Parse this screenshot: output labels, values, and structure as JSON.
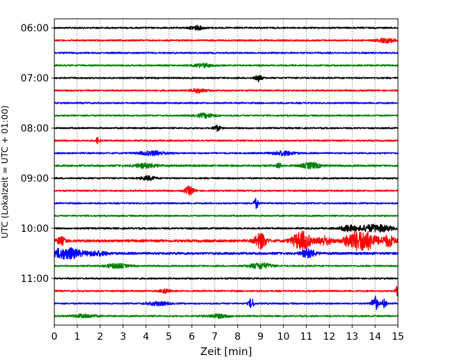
{
  "chart_data": {
    "type": "line",
    "title": "",
    "xlabel": "Zeit  [min]",
    "ylabel": "UTC (Lokalzeit = UTC + 01:00)",
    "xlim": [
      0,
      15
    ],
    "x_ticks": [
      "0",
      "1",
      "2",
      "3",
      "4",
      "5",
      "6",
      "7",
      "8",
      "9",
      "10",
      "11",
      "12",
      "13",
      "14",
      "15"
    ],
    "y_tick_labels": [
      "06:00",
      "07:00",
      "08:00",
      "09:00",
      "10:00",
      "11:00"
    ],
    "grid": "vertical dotted",
    "start_time": "06:00",
    "trace_interval_minutes": 15,
    "colors": [
      "#000000",
      "#ff0000",
      "#0000ff",
      "#008000"
    ],
    "series": [
      {
        "start": "06:00",
        "color": "#000000",
        "amplitude": 1.0,
        "events": [
          {
            "t": 6.2,
            "amp": 3,
            "w": 0.3
          }
        ]
      },
      {
        "start": "06:15",
        "color": "#ff0000",
        "amplitude": 1.0,
        "events": [
          {
            "t": 14.5,
            "amp": 3,
            "w": 0.4
          }
        ]
      },
      {
        "start": "06:30",
        "color": "#0000ff",
        "amplitude": 1.0,
        "events": []
      },
      {
        "start": "06:45",
        "color": "#008000",
        "amplitude": 1.0,
        "events": [
          {
            "t": 6.5,
            "amp": 2.5,
            "w": 0.4
          }
        ]
      },
      {
        "start": "07:00",
        "color": "#000000",
        "amplitude": 1.0,
        "events": [
          {
            "t": 8.9,
            "amp": 5,
            "w": 0.15
          }
        ]
      },
      {
        "start": "07:15",
        "color": "#ff0000",
        "amplitude": 1.0,
        "events": [
          {
            "t": 6.3,
            "amp": 3,
            "w": 0.3
          }
        ]
      },
      {
        "start": "07:30",
        "color": "#0000ff",
        "amplitude": 1.0,
        "events": []
      },
      {
        "start": "07:45",
        "color": "#008000",
        "amplitude": 1.0,
        "events": [
          {
            "t": 6.6,
            "amp": 3,
            "w": 0.4
          }
        ]
      },
      {
        "start": "08:00",
        "color": "#000000",
        "amplitude": 1.0,
        "events": [
          {
            "t": 7.1,
            "amp": 4,
            "w": 0.15
          }
        ]
      },
      {
        "start": "08:15",
        "color": "#ff0000",
        "amplitude": 1.0,
        "events": [
          {
            "t": 1.9,
            "amp": 4,
            "w": 0.1
          }
        ]
      },
      {
        "start": "08:30",
        "color": "#0000ff",
        "amplitude": 1.0,
        "events": [
          {
            "t": 4.3,
            "amp": 3,
            "w": 0.6
          },
          {
            "t": 10.0,
            "amp": 3,
            "w": 0.5
          }
        ]
      },
      {
        "start": "08:45",
        "color": "#008000",
        "amplitude": 1.2,
        "events": [
          {
            "t": 4.0,
            "amp": 3,
            "w": 0.5
          },
          {
            "t": 9.8,
            "amp": 4,
            "w": 0.1
          },
          {
            "t": 11.2,
            "amp": 4,
            "w": 0.4
          }
        ]
      },
      {
        "start": "09:00",
        "color": "#000000",
        "amplitude": 1.0,
        "events": [
          {
            "t": 4.1,
            "amp": 3,
            "w": 0.3
          }
        ]
      },
      {
        "start": "09:15",
        "color": "#ff0000",
        "amplitude": 1.0,
        "events": [
          {
            "t": 5.9,
            "amp": 6,
            "w": 0.2
          }
        ]
      },
      {
        "start": "09:30",
        "color": "#0000ff",
        "amplitude": 1.0,
        "events": [
          {
            "t": 8.8,
            "amp": 7,
            "w": 0.1
          }
        ]
      },
      {
        "start": "09:45",
        "color": "#008000",
        "amplitude": 1.0,
        "events": []
      },
      {
        "start": "10:00",
        "color": "#000000",
        "amplitude": 1.1,
        "events": [
          {
            "t": 12.8,
            "amp": 4,
            "w": 0.3
          },
          {
            "t": 14.0,
            "amp": 5,
            "w": 0.8
          }
        ]
      },
      {
        "start": "10:15",
        "color": "#ff0000",
        "amplitude": 1.6,
        "events": [
          {
            "t": 0.3,
            "amp": 5,
            "w": 0.2
          },
          {
            "t": 9.0,
            "amp": 11,
            "w": 0.25
          },
          {
            "t": 10.8,
            "amp": 13,
            "w": 0.4
          },
          {
            "t": 11.8,
            "amp": 6,
            "w": 0.3
          },
          {
            "t": 13.0,
            "amp": 9,
            "w": 0.4
          },
          {
            "t": 13.6,
            "amp": 12,
            "w": 0.5
          },
          {
            "t": 14.6,
            "amp": 7,
            "w": 0.3
          }
        ]
      },
      {
        "start": "10:30",
        "color": "#0000ff",
        "amplitude": 1.5,
        "events": [
          {
            "t": 0.2,
            "amp": 6,
            "w": 0.5
          },
          {
            "t": 0.8,
            "amp": 5,
            "w": 0.4
          },
          {
            "t": 1.8,
            "amp": 3,
            "w": 0.5
          },
          {
            "t": 11.1,
            "amp": 6,
            "w": 0.3
          }
        ]
      },
      {
        "start": "10:45",
        "color": "#008000",
        "amplitude": 1.0,
        "events": [
          {
            "t": 2.7,
            "amp": 3,
            "w": 0.5
          },
          {
            "t": 9.0,
            "amp": 4,
            "w": 0.5
          }
        ]
      },
      {
        "start": "11:00",
        "color": "#000000",
        "amplitude": 1.0,
        "events": []
      },
      {
        "start": "11:15",
        "color": "#ff0000",
        "amplitude": 1.0,
        "events": [
          {
            "t": 4.8,
            "amp": 3,
            "w": 0.2
          },
          {
            "t": 15.0,
            "amp": 8,
            "w": 0.1
          }
        ]
      },
      {
        "start": "11:30",
        "color": "#0000ff",
        "amplitude": 1.0,
        "events": [
          {
            "t": 4.5,
            "amp": 2.5,
            "w": 0.5
          },
          {
            "t": 8.6,
            "amp": 8,
            "w": 0.1
          },
          {
            "t": 14.0,
            "amp": 10,
            "w": 0.15
          },
          {
            "t": 14.4,
            "amp": 6,
            "w": 0.1
          }
        ]
      },
      {
        "start": "11:45",
        "color": "#008000",
        "amplitude": 1.0,
        "events": [
          {
            "t": 1.3,
            "amp": 2.5,
            "w": 0.5
          },
          {
            "t": 7.2,
            "amp": 2.5,
            "w": 0.5
          }
        ]
      }
    ]
  }
}
